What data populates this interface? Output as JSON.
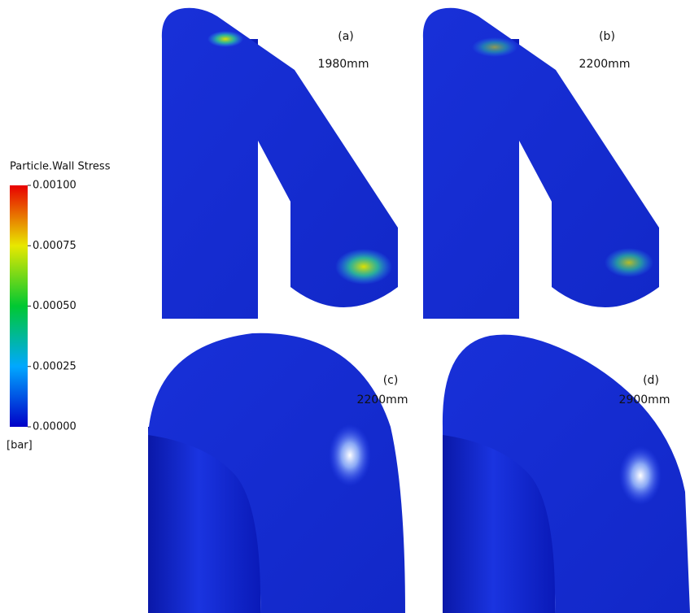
{
  "legend": {
    "title": "Particle.Wall Stress",
    "unit": "[bar]",
    "range": [
      0,
      0.001
    ],
    "ticks": [
      {
        "value": 0.001,
        "label": "0.00100"
      },
      {
        "value": 0.00075,
        "label": "0.00075"
      },
      {
        "value": 0.0005,
        "label": "0.00050"
      },
      {
        "value": 0.00025,
        "label": "0.00025"
      },
      {
        "value": 0,
        "label": "0.00000"
      }
    ]
  },
  "panels": [
    {
      "label": "(a)",
      "size": "1980mm"
    },
    {
      "label": "(b)",
      "size": "2200mm"
    },
    {
      "label": "(c)",
      "size": "2200mm"
    },
    {
      "label": "(d)",
      "size": "2900mm"
    }
  ]
}
